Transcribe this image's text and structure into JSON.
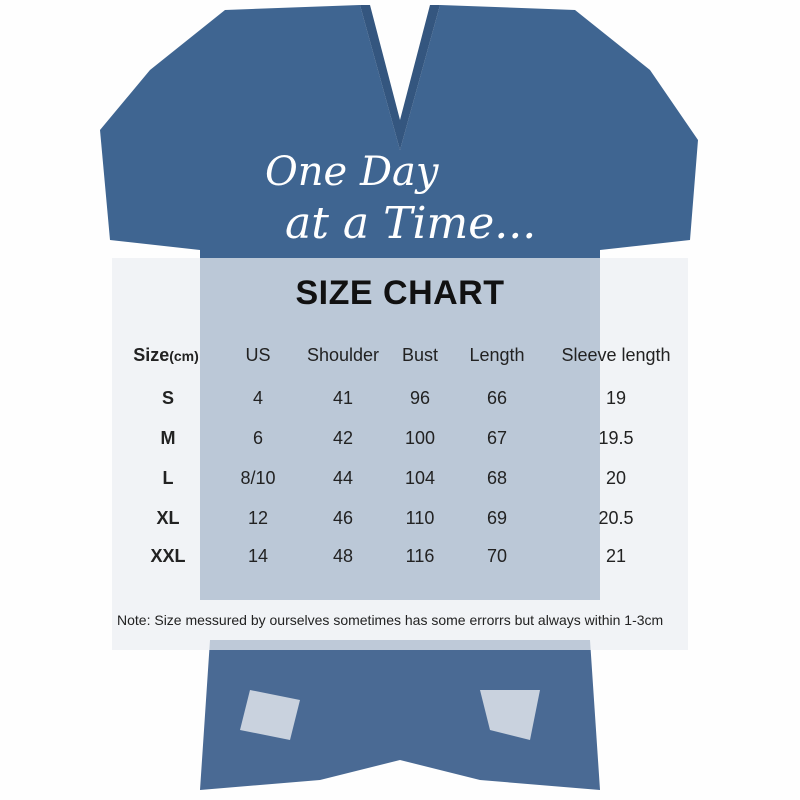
{
  "print_text": [
    "One Day",
    "at a Time..."
  ],
  "title": "SIZE CHART",
  "table": {
    "headers": {
      "size": "Size",
      "size_unit": "(cm)",
      "us": "US",
      "shoulder": "Shoulder",
      "bust": "Bust",
      "length": "Length",
      "sleeve": "Sleeve length"
    },
    "rows": [
      {
        "size": "S",
        "us": "4",
        "shoulder": "41",
        "bust": "96",
        "length": "66",
        "sleeve": "19"
      },
      {
        "size": "M",
        "us": "6",
        "shoulder": "42",
        "bust": "100",
        "length": "67",
        "sleeve": "19.5"
      },
      {
        "size": "L",
        "us": "8/10",
        "shoulder": "44",
        "bust": "104",
        "length": "68",
        "sleeve": "20"
      },
      {
        "size": "XL",
        "us": "12",
        "shoulder": "46",
        "bust": "110",
        "length": "69",
        "sleeve": "20.5"
      },
      {
        "size": "XXL",
        "us": "14",
        "shoulder": "48",
        "bust": "116",
        "length": "70",
        "sleeve": "21"
      }
    ]
  },
  "note": "Note:  Size messured by ourselves sometimes has some errorrs but always within 1-3cm",
  "colors": {
    "shirt": "#3f6591",
    "shorts": "#4a6a94",
    "panel": "#ebeef3"
  }
}
